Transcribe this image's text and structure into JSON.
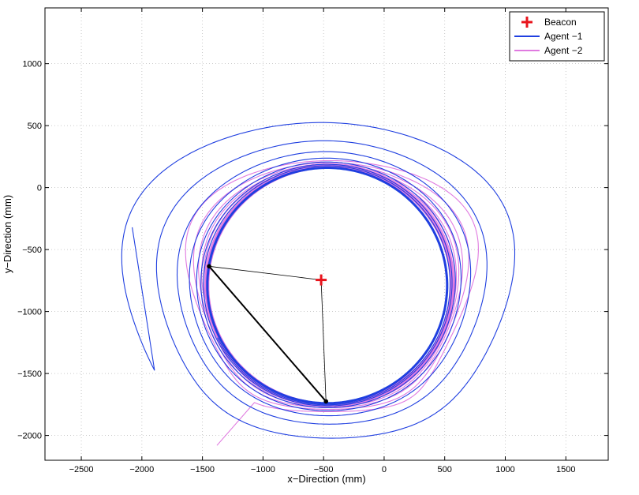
{
  "chart_data": {
    "type": "line",
    "xlabel": "x−Direction (mm)",
    "ylabel": "y−Direction (mm)",
    "xlim": [
      -2800,
      1850
    ],
    "ylim": [
      -2200,
      1450
    ],
    "xticks": [
      -2500,
      -2000,
      -1500,
      -1000,
      -500,
      0,
      500,
      1000,
      1500
    ],
    "yticks": [
      -2000,
      -1500,
      -1000,
      -500,
      0,
      500,
      1000
    ],
    "xtick_labels": [
      "−2500",
      "−2000",
      "−1500",
      "−1000",
      "−500",
      "0",
      "500",
      "1000",
      "1500"
    ],
    "ytick_labels": [
      "−2000",
      "−1500",
      "−1000",
      "−500",
      "0",
      "500",
      "1000"
    ],
    "grid": true,
    "legend_position": "top-right",
    "beacon": {
      "name": "Beacon",
      "x": -520,
      "y": -745,
      "color": "#e8141c"
    },
    "series": [
      {
        "name": "Agent −1",
        "color": "#1f3fe0",
        "description_points": {
          "start": [
            -2080,
            -320
          ],
          "limit_center": [
            -470,
            -790
          ],
          "limit_radius": [
            990,
            950
          ]
        }
      },
      {
        "name": "Agent −2",
        "color": "#e07ae0",
        "description_points": {
          "start": [
            -1380,
            -2080
          ],
          "limit_center": [
            -450,
            -790
          ],
          "limit_radius": [
            1010,
            960
          ]
        }
      }
    ],
    "annotations": {
      "agent1_position": [
        -1445,
        -635
      ],
      "agent2_position": [
        -480,
        -1725
      ]
    }
  }
}
